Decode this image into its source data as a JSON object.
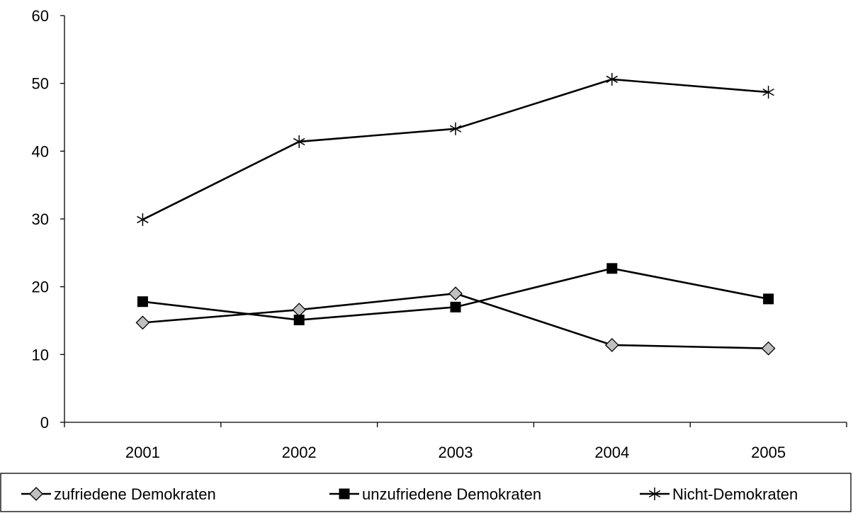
{
  "chart_data": {
    "type": "line",
    "title": "",
    "xlabel": "",
    "ylabel": "",
    "categories": [
      "2001",
      "2002",
      "2003",
      "2004",
      "2005"
    ],
    "ylim": [
      0,
      60
    ],
    "yticks": [
      0,
      10,
      20,
      30,
      40,
      50,
      60
    ],
    "grid": false,
    "legend_position": "bottom",
    "series": [
      {
        "name": "zufriedene Demokraten",
        "marker": "diamond",
        "color": "#000000",
        "marker_fill": "#c0c0c0",
        "values": [
          14.7,
          16.6,
          19.0,
          11.4,
          10.9
        ]
      },
      {
        "name": "unzufriedene Demokraten",
        "marker": "square",
        "color": "#000000",
        "marker_fill": "#000000",
        "values": [
          17.8,
          15.1,
          17.0,
          22.7,
          18.2
        ]
      },
      {
        "name": "Nicht-Demokraten",
        "marker": "asterisk",
        "color": "#000000",
        "marker_fill": "none",
        "values": [
          29.9,
          41.4,
          43.3,
          50.6,
          48.7
        ]
      }
    ]
  }
}
